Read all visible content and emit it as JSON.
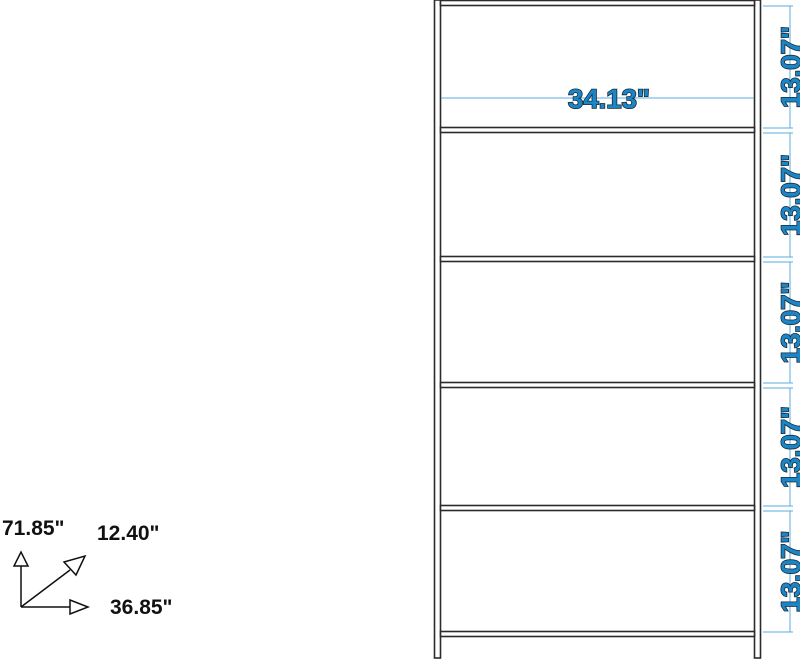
{
  "diagram": {
    "overall": {
      "height_label": "71.85\"",
      "depth_label": "12.40\"",
      "width_label": "36.85\""
    },
    "shelf_width_label": "34.13\"",
    "shelf_spacings": [
      "13.07\"",
      "13.07\"",
      "13.07\"",
      "13.07\"",
      "13.07\""
    ],
    "colors": {
      "dimension_fill": "#1a86c7",
      "dimension_line": "#5aaee0",
      "frame": "#2b2b2b"
    }
  }
}
